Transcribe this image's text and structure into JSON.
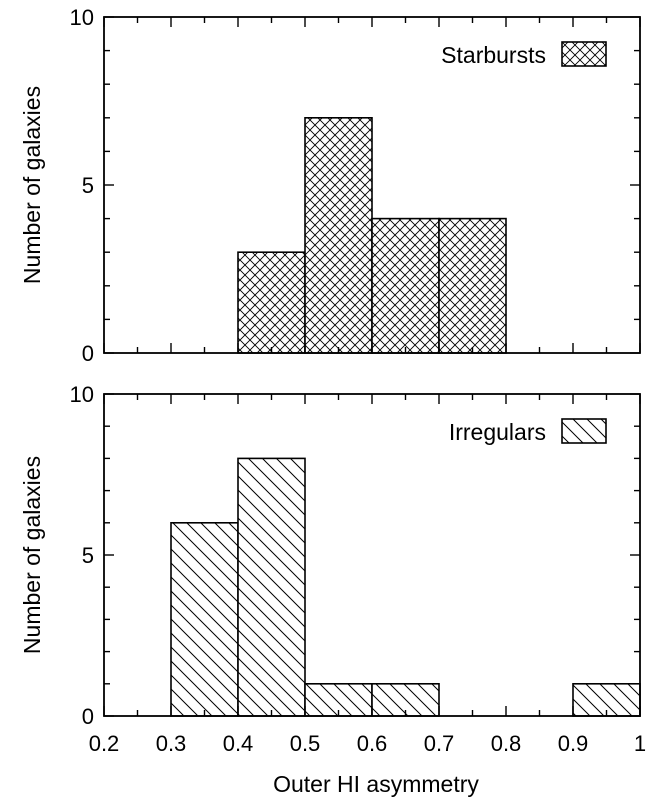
{
  "chart_data": [
    {
      "type": "bar",
      "bins": [
        [
          0.4,
          0.5
        ],
        [
          0.5,
          0.6
        ],
        [
          0.6,
          0.7
        ],
        [
          0.7,
          0.8
        ]
      ],
      "values": [
        3,
        7,
        4,
        4
      ],
      "series": [
        {
          "name": "Starbursts",
          "pattern": "crosshatch"
        }
      ],
      "xlim": [
        0.2,
        1.0
      ],
      "ylim": [
        0,
        10
      ],
      "ylabel": "Number of galaxies",
      "yticks": [
        "0",
        "5",
        "10"
      ],
      "legend": "top-right",
      "grid": false
    },
    {
      "type": "bar",
      "bins": [
        [
          0.3,
          0.4
        ],
        [
          0.4,
          0.5
        ],
        [
          0.5,
          0.6
        ],
        [
          0.6,
          0.7
        ],
        [
          0.9,
          1.0
        ]
      ],
      "values": [
        6,
        8,
        1,
        1,
        1
      ],
      "series": [
        {
          "name": "Irregulars",
          "pattern": "hatch"
        }
      ],
      "xlim": [
        0.2,
        1.0
      ],
      "ylim": [
        0,
        10
      ],
      "ylabel": "Number of galaxies",
      "xlabel": "Outer HI asymmetry",
      "xticks": [
        "0.2",
        "0.3",
        "0.4",
        "0.5",
        "0.6",
        "0.7",
        "0.8",
        "0.9",
        "1"
      ],
      "yticks": [
        "0",
        "5",
        "10"
      ],
      "legend": "top-right",
      "grid": false
    }
  ]
}
